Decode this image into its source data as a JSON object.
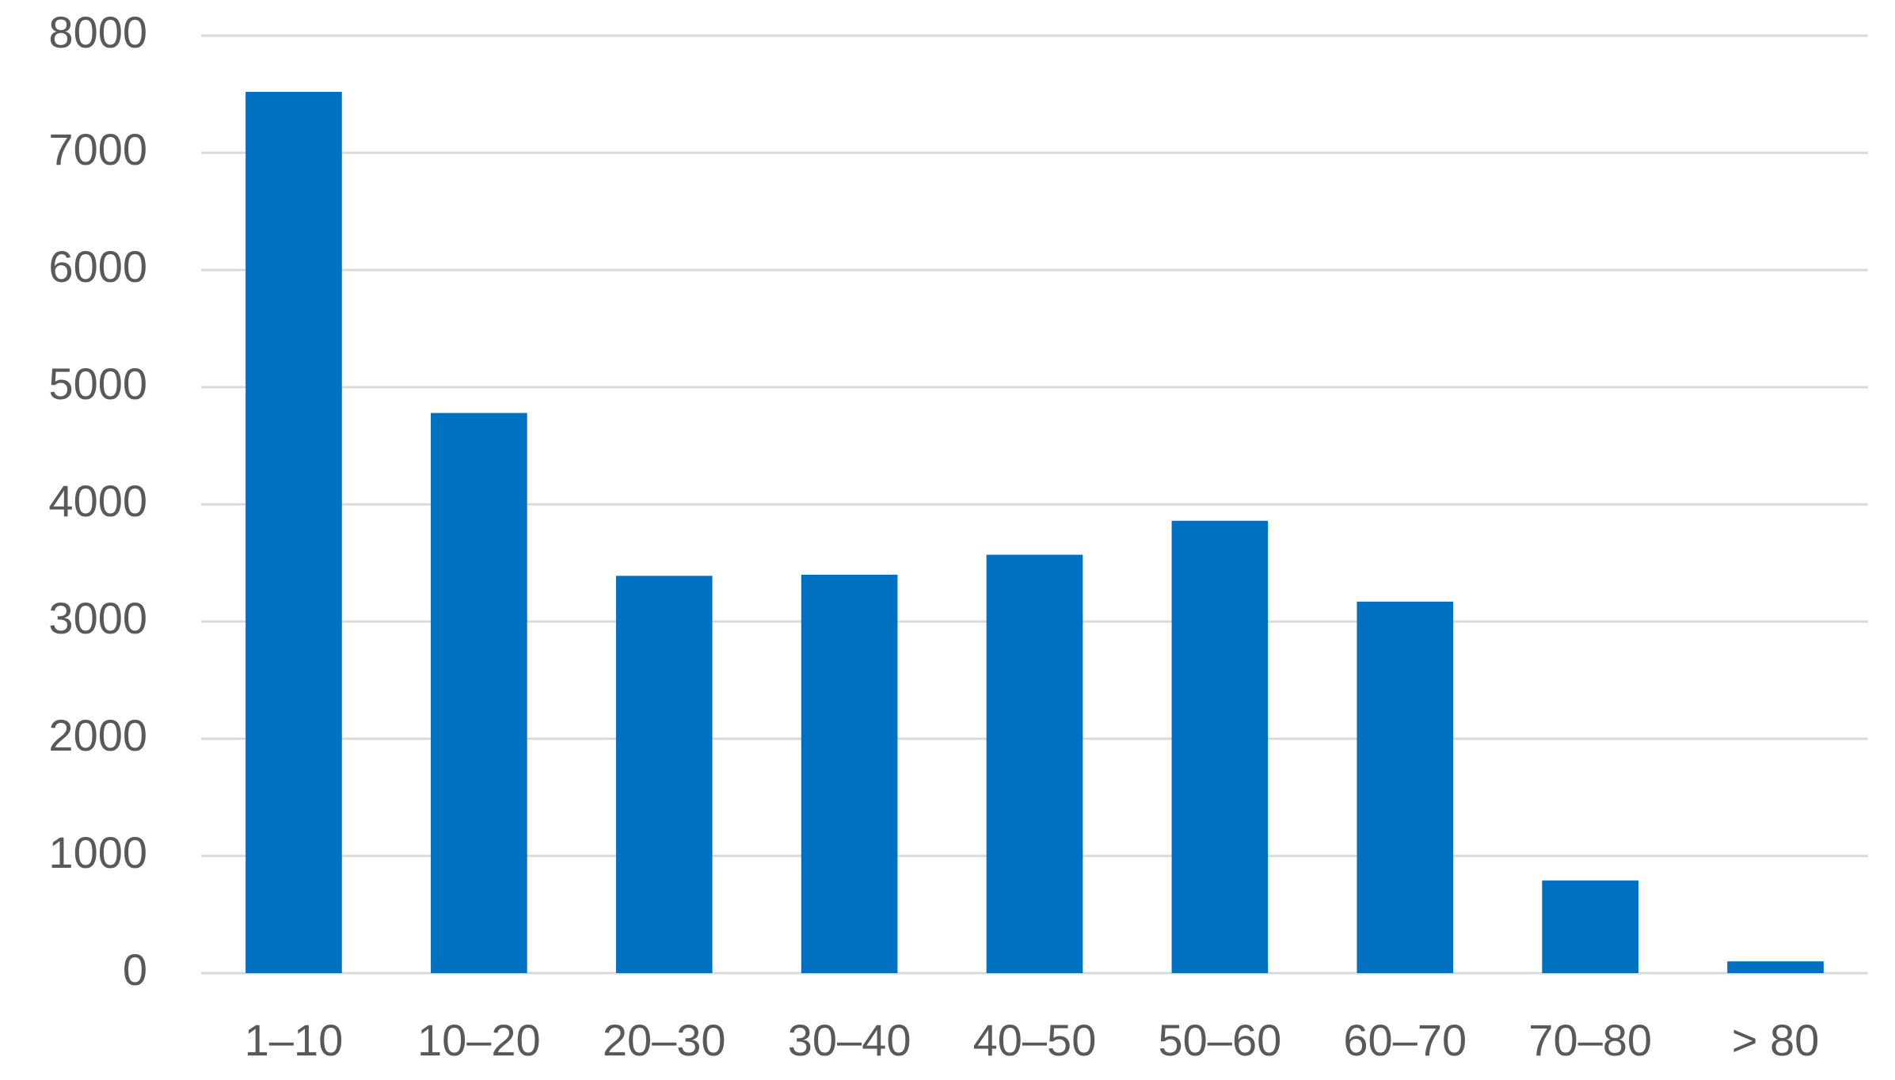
{
  "chart_data": {
    "type": "bar",
    "categories": [
      "1–10",
      "10–20",
      "20–30",
      "30–40",
      "40–50",
      "50–60",
      "60–70",
      "70–80",
      "> 80"
    ],
    "values": [
      7520,
      4780,
      3390,
      3400,
      3570,
      3860,
      3170,
      790,
      100
    ],
    "color": "#0070c0",
    "ylim": [
      0,
      8000
    ],
    "yticks": [
      0,
      1000,
      2000,
      3000,
      4000,
      5000,
      6000,
      7000,
      8000
    ],
    "grid": true
  }
}
